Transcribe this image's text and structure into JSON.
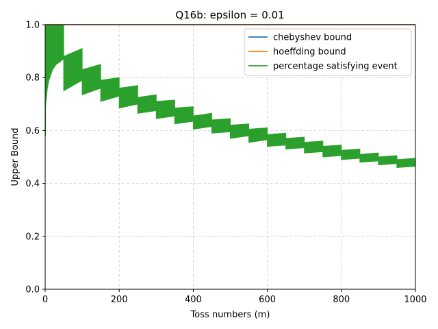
{
  "chart_data": {
    "type": "line",
    "title": "Q16b: epsilon = 0.01",
    "xlabel": "Toss numbers (m)",
    "ylabel": "Upper Bound",
    "xlim": [
      0,
      1000
    ],
    "ylim": [
      0,
      1.0
    ],
    "xticks": [
      0,
      200,
      400,
      600,
      800,
      1000
    ],
    "yticks": [
      0.0,
      0.2,
      0.4,
      0.6,
      0.8,
      1.0
    ],
    "xtick_labels": [
      "0",
      "200",
      "400",
      "600",
      "800",
      "1000"
    ],
    "ytick_labels": [
      "0.0",
      "0.2",
      "0.4",
      "0.6",
      "0.8",
      "1.0"
    ],
    "grid": true,
    "legend_position": "top-right",
    "series": [
      {
        "name": "chebyshev bound",
        "color": "#1f77b4",
        "x": [
          1,
          1000
        ],
        "y": [
          1.0,
          1.0
        ]
      },
      {
        "name": "hoeffding bound",
        "color": "#ff7f0e",
        "x": [
          1,
          1000
        ],
        "y": [
          1.0,
          1.0
        ]
      },
      {
        "name": "percentage satisfying event",
        "color": "#2ca02c",
        "segments": [
          {
            "x0": 1,
            "x1": 50,
            "top_start": 0.84,
            "top_end": 1.0,
            "bottom_start": 0.58,
            "bottom_end": 1.0
          },
          {
            "x0": 50,
            "x1": 100,
            "top_start": 0.88,
            "top_end": 0.91,
            "bottom_start": 0.75,
            "bottom_end": 0.79
          },
          {
            "x0": 100,
            "x1": 150,
            "top_start": 0.83,
            "top_end": 0.85,
            "bottom_start": 0.735,
            "bottom_end": 0.76
          },
          {
            "x0": 150,
            "x1": 200,
            "top_start": 0.79,
            "top_end": 0.8,
            "bottom_start": 0.71,
            "bottom_end": 0.73
          },
          {
            "x0": 200,
            "x1": 250,
            "top_start": 0.76,
            "top_end": 0.77,
            "bottom_start": 0.685,
            "bottom_end": 0.7
          },
          {
            "x0": 250,
            "x1": 300,
            "top_start": 0.725,
            "top_end": 0.735,
            "bottom_start": 0.665,
            "bottom_end": 0.675
          },
          {
            "x0": 300,
            "x1": 350,
            "top_start": 0.71,
            "top_end": 0.715,
            "bottom_start": 0.645,
            "bottom_end": 0.655
          },
          {
            "x0": 350,
            "x1": 400,
            "top_start": 0.685,
            "top_end": 0.69,
            "bottom_start": 0.625,
            "bottom_end": 0.635
          },
          {
            "x0": 400,
            "x1": 450,
            "top_start": 0.655,
            "top_end": 0.665,
            "bottom_start": 0.605,
            "bottom_end": 0.615
          },
          {
            "x0": 450,
            "x1": 500,
            "top_start": 0.64,
            "top_end": 0.645,
            "bottom_start": 0.59,
            "bottom_end": 0.595
          },
          {
            "x0": 500,
            "x1": 550,
            "top_start": 0.62,
            "top_end": 0.625,
            "bottom_start": 0.57,
            "bottom_end": 0.58
          },
          {
            "x0": 550,
            "x1": 600,
            "top_start": 0.605,
            "top_end": 0.61,
            "bottom_start": 0.555,
            "bottom_end": 0.565
          },
          {
            "x0": 600,
            "x1": 650,
            "top_start": 0.585,
            "top_end": 0.59,
            "bottom_start": 0.54,
            "bottom_end": 0.545
          },
          {
            "x0": 650,
            "x1": 700,
            "top_start": 0.57,
            "top_end": 0.575,
            "bottom_start": 0.53,
            "bottom_end": 0.535
          },
          {
            "x0": 700,
            "x1": 750,
            "top_start": 0.555,
            "top_end": 0.56,
            "bottom_start": 0.515,
            "bottom_end": 0.52
          },
          {
            "x0": 750,
            "x1": 800,
            "top_start": 0.54,
            "top_end": 0.545,
            "bottom_start": 0.5,
            "bottom_end": 0.505
          },
          {
            "x0": 800,
            "x1": 850,
            "top_start": 0.525,
            "top_end": 0.53,
            "bottom_start": 0.49,
            "bottom_end": 0.495
          },
          {
            "x0": 850,
            "x1": 900,
            "top_start": 0.51,
            "top_end": 0.515,
            "bottom_start": 0.48,
            "bottom_end": 0.485
          },
          {
            "x0": 900,
            "x1": 950,
            "top_start": 0.5,
            "top_end": 0.505,
            "bottom_start": 0.47,
            "bottom_end": 0.475
          },
          {
            "x0": 950,
            "x1": 1000,
            "top_start": 0.49,
            "top_end": 0.495,
            "bottom_start": 0.46,
            "bottom_end": 0.465
          }
        ]
      }
    ]
  }
}
